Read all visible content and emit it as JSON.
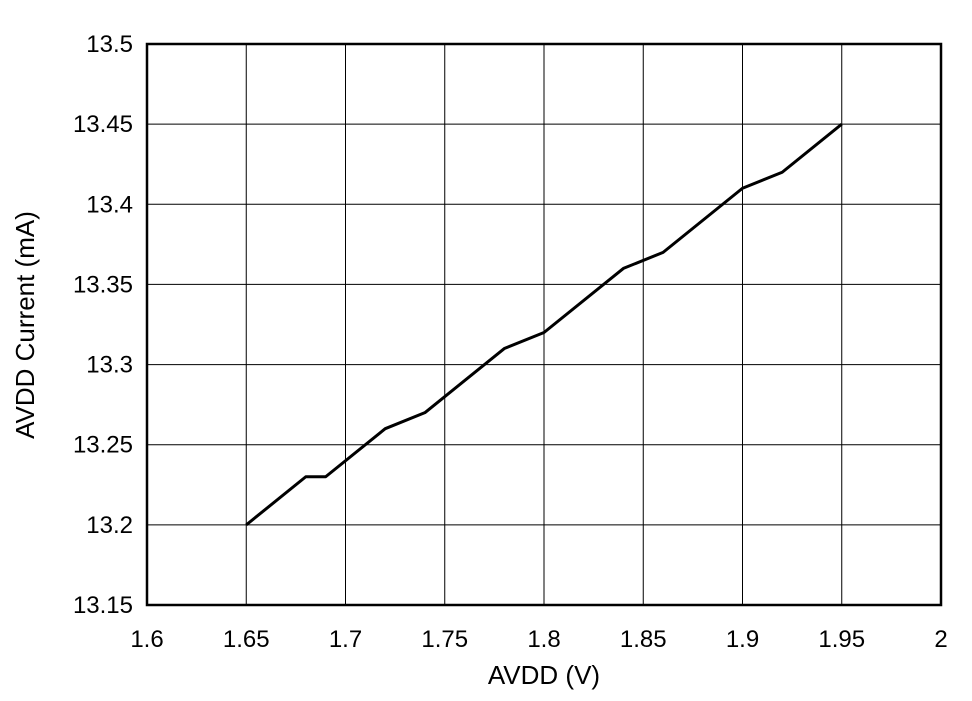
{
  "chart_data": {
    "type": "line",
    "title": "",
    "xlabel": "AVDD (V)",
    "ylabel": "AVDD Current (mA)",
    "xlim": [
      1.6,
      2.0
    ],
    "ylim": [
      13.15,
      13.5
    ],
    "grid": true,
    "x_ticks": [
      "1.6",
      "1.65",
      "1.7",
      "1.75",
      "1.8",
      "1.85",
      "1.9",
      "1.95",
      "2"
    ],
    "y_ticks": [
      "13.15",
      "13.2",
      "13.25",
      "13.3",
      "13.35",
      "13.4",
      "13.45",
      "13.5"
    ],
    "series": [
      {
        "x": [
          1.65,
          1.68,
          1.69,
          1.72,
          1.74,
          1.78,
          1.8,
          1.84,
          1.86,
          1.9,
          1.92,
          1.95
        ],
        "y": [
          13.2,
          13.23,
          13.23,
          13.26,
          13.27,
          13.31,
          13.32,
          13.36,
          13.37,
          13.41,
          13.42,
          13.45
        ],
        "color": "#000000"
      }
    ]
  }
}
